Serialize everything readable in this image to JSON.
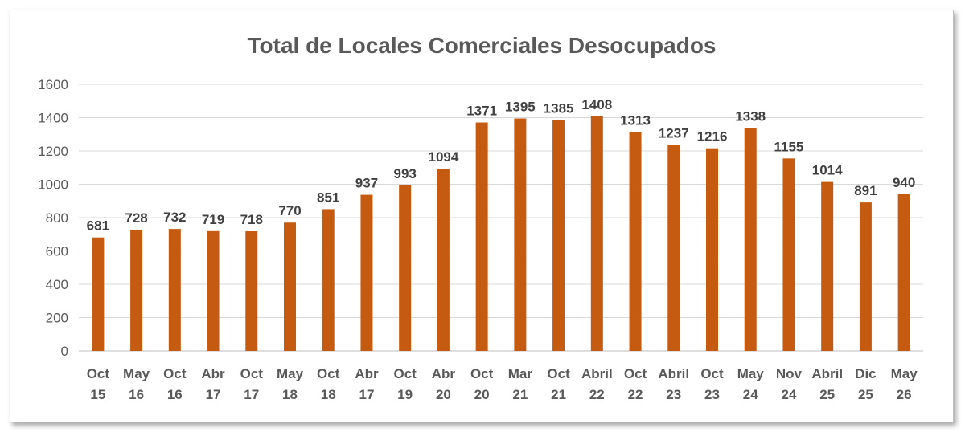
{
  "chart_data": {
    "type": "bar",
    "title": "Total de Locales Comerciales Desocupados",
    "xlabel": "",
    "ylabel": "",
    "ylim": [
      0,
      1600
    ],
    "yticks": [
      0,
      200,
      400,
      600,
      800,
      1000,
      1200,
      1400,
      1600
    ],
    "grid": true,
    "legend": "none",
    "bar_color": "#c55a11",
    "categories": [
      [
        "Oct",
        "15"
      ],
      [
        "May",
        "16"
      ],
      [
        "Oct",
        "16"
      ],
      [
        "Abr",
        "17"
      ],
      [
        "Oct",
        "17"
      ],
      [
        "May",
        "18"
      ],
      [
        "Oct",
        "18"
      ],
      [
        "Abr",
        "17"
      ],
      [
        "Oct",
        "19"
      ],
      [
        "Abr",
        "20"
      ],
      [
        "Oct",
        "20"
      ],
      [
        "Mar",
        "21"
      ],
      [
        "Oct",
        "21"
      ],
      [
        "Abril",
        "22"
      ],
      [
        "Oct",
        "22"
      ],
      [
        "Abril",
        "23"
      ],
      [
        "Oct",
        "23"
      ],
      [
        "May",
        "24"
      ],
      [
        "Nov",
        "24"
      ],
      [
        "Abril",
        "25"
      ],
      [
        "Dic",
        "25"
      ],
      [
        "May",
        "26"
      ]
    ],
    "values": [
      681,
      728,
      732,
      719,
      718,
      770,
      851,
      937,
      993,
      1094,
      1371,
      1395,
      1385,
      1408,
      1313,
      1237,
      1216,
      1338,
      1155,
      1014,
      891,
      940
    ]
  }
}
